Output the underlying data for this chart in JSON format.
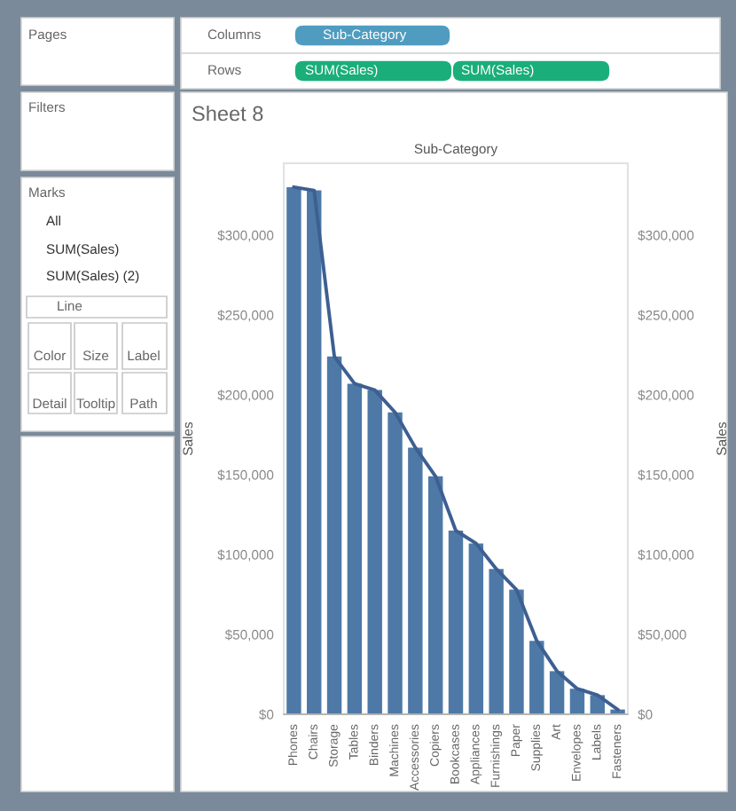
{
  "chart_data": {
    "type": "bar",
    "title": "Sheet 8",
    "xlabel": "Sub-Category",
    "ylabel": "Sales",
    "y2label": "Sales",
    "categories": [
      "Phones",
      "Chairs",
      "Storage",
      "Tables",
      "Binders",
      "Machines",
      "Accessories",
      "Copiers",
      "Bookcases",
      "Appliances",
      "Furnishings",
      "Paper",
      "Supplies",
      "Art",
      "Envelopes",
      "Labels",
      "Fasteners"
    ],
    "series": [
      {
        "color": "#4e79a7",
        "values": [
          330000,
          328000,
          224000,
          207000,
          203000,
          189000,
          167000,
          149000,
          115000,
          107000,
          91000,
          78000,
          46000,
          27000,
          16000,
          12000,
          3000
        ]
      },
      {
        "type": "line",
        "axis": "y2",
        "color": "#3d5f92",
        "values": [
          330000,
          328000,
          224000,
          207000,
          203000,
          189000,
          167000,
          149000,
          115000,
          107000,
          91000,
          78000,
          46000,
          27000,
          16000,
          12000,
          3000
        ]
      }
    ],
    "ylim": [
      0,
      345000
    ],
    "yticks": [
      {
        "value": 0,
        "label": "$0"
      },
      {
        "value": 50000,
        "label": "$50,000"
      },
      {
        "value": 100000,
        "label": "$100,000"
      },
      {
        "value": 150000,
        "label": "$150,000"
      },
      {
        "value": 200000,
        "label": "$200,000"
      },
      {
        "value": 250000,
        "label": "$250,000"
      },
      {
        "value": 300000,
        "label": "$300,000"
      }
    ],
    "y2lim": [
      0,
      345000
    ],
    "y2ticks": [
      {
        "value": 0,
        "label": "$0"
      },
      {
        "value": 50000,
        "label": "$50,000"
      },
      {
        "value": 100000,
        "label": "$100,000"
      },
      {
        "value": 150000,
        "label": "$150,000"
      },
      {
        "value": 200000,
        "label": "$200,000"
      },
      {
        "value": 250000,
        "label": "$250,000"
      },
      {
        "value": 300000,
        "label": "$300,000"
      }
    ],
    "line_style": "solid",
    "annotations": [
      "Pages",
      "Columns",
      "Sub-Category",
      "Rows",
      "SUM(Sales)",
      "SUM(Sales)",
      "Filters",
      "Marks",
      "All",
      "SUM(Sales)",
      "SUM(Sales) (2)",
      "Line",
      "Color",
      "Size",
      "Label",
      "Detail",
      "Tooltip",
      "Path"
    ]
  }
}
